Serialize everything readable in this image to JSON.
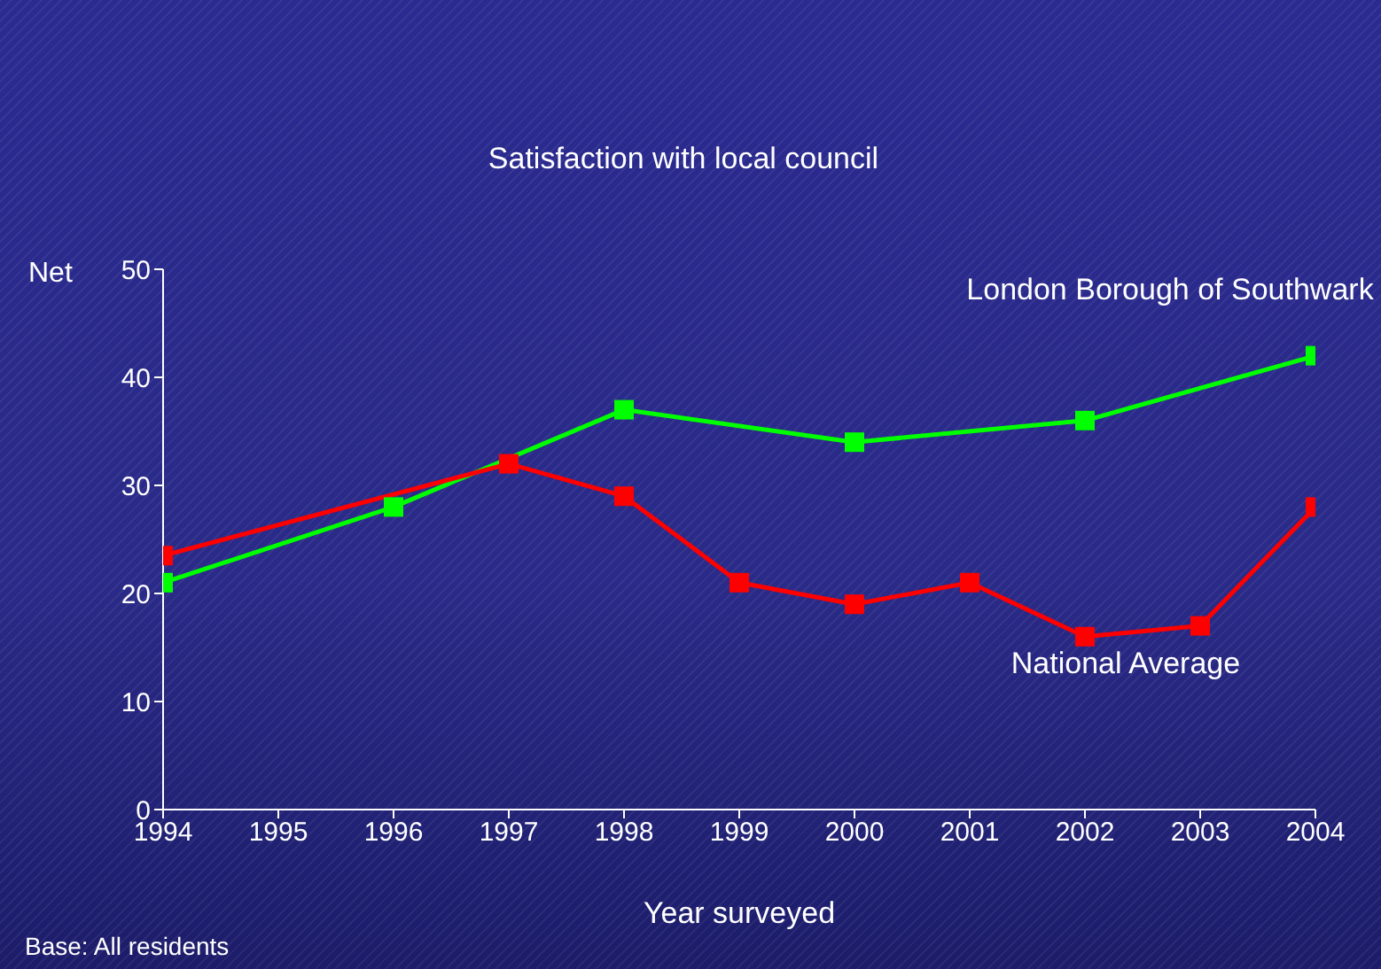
{
  "chart_data": {
    "type": "line",
    "title": "Satisfaction with local council",
    "xlabel": "Year surveyed",
    "ylabel": "Net",
    "annotations": [
      "Base: All residents"
    ],
    "xlim": [
      1994,
      2004
    ],
    "xticks": [
      1994,
      1995,
      1996,
      1997,
      1998,
      1999,
      2000,
      2001,
      2002,
      2003,
      2004
    ],
    "ylim": [
      0,
      50
    ],
    "yticks": [
      0,
      10,
      20,
      30,
      40,
      50
    ],
    "series": [
      {
        "name": "London Borough of Southwark",
        "color": "#00ff00",
        "x": [
          1994,
          1996,
          1998,
          2000,
          2002,
          2004
        ],
        "values": [
          21,
          28,
          37,
          34,
          36,
          42
        ]
      },
      {
        "name": "National Average",
        "color": "#ff0000",
        "x": [
          1994,
          1997,
          1998,
          1999,
          2000,
          2001,
          2002,
          2003,
          2004
        ],
        "values": [
          23.5,
          32,
          29,
          21,
          19,
          21,
          16,
          17,
          28
        ]
      }
    ],
    "marker": "square",
    "grid": false,
    "legend": false
  }
}
